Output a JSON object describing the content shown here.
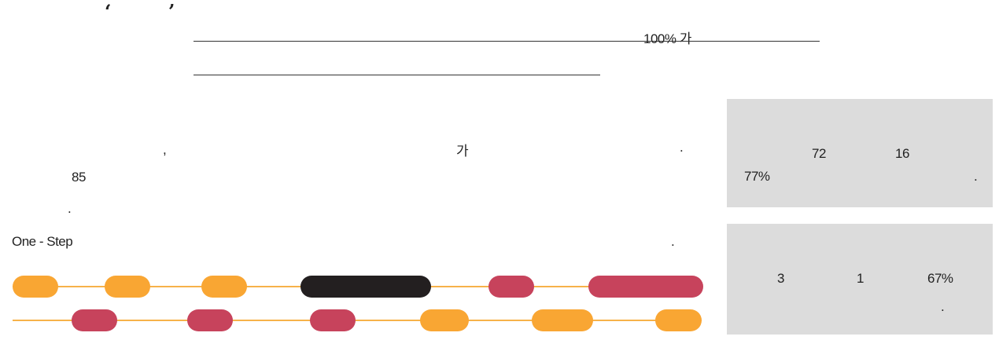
{
  "header": {
    "quote_open": "‘",
    "quote_close": "’",
    "rule1_text": "100%   가",
    "rule2_text": ""
  },
  "body": {
    "comma": ",",
    "ga": "가",
    "period1": ".",
    "num85": "85",
    "period2": ".",
    "onestep": "One - Step",
    "period3": "."
  },
  "boxes": [
    {
      "a": "72",
      "b": "16",
      "c": "77%",
      "d": "."
    },
    {
      "a": "3",
      "b": "1",
      "c": "67%",
      "d": "."
    }
  ],
  "colors": {
    "orange": "#f9a633",
    "crimson": "#c7435c",
    "black": "#231f20",
    "track": "#f7b24a",
    "box": "#dcdcdc"
  },
  "timeline": {
    "row1": [
      "orange",
      "orange",
      "orange",
      "black",
      "crimson",
      "crimson"
    ],
    "row2": [
      "crimson",
      "crimson",
      "crimson",
      "orange",
      "orange",
      "orange"
    ]
  }
}
